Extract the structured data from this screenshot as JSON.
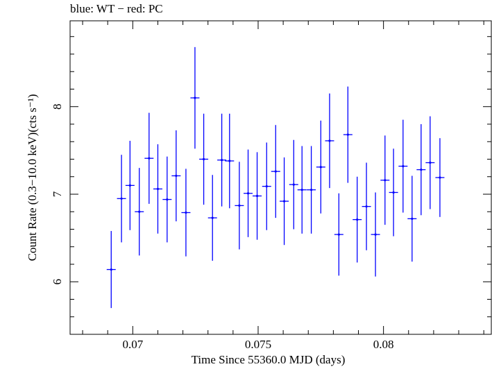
{
  "chart_data": {
    "type": "scatter",
    "title": "blue: WT − red: PC",
    "xlabel": "Time Since 55360.0 MJD (days)",
    "ylabel": "Count Rate (0.3−10.0 keV)(cts s⁻¹)",
    "xlim": [
      0.0675,
      0.0843
    ],
    "ylim": [
      5.4,
      8.98
    ],
    "x_ticks": [
      "0.07",
      "0.075",
      "0.08"
    ],
    "y_ticks": [
      "6",
      "7",
      "8"
    ],
    "series": [
      {
        "color": "#0000ff",
        "x_half_width": 0.00018,
        "points": [
          {
            "x": 0.06914,
            "y": 6.14,
            "err": 0.44
          },
          {
            "x": 0.06955,
            "y": 6.95,
            "err": 0.5
          },
          {
            "x": 0.06989,
            "y": 7.1,
            "err": 0.51
          },
          {
            "x": 0.07026,
            "y": 6.8,
            "err": 0.5
          },
          {
            "x": 0.07065,
            "y": 7.41,
            "err": 0.52
          },
          {
            "x": 0.071,
            "y": 7.06,
            "err": 0.51
          },
          {
            "x": 0.07137,
            "y": 6.94,
            "err": 0.49
          },
          {
            "x": 0.07173,
            "y": 7.21,
            "err": 0.52
          },
          {
            "x": 0.07212,
            "y": 6.79,
            "err": 0.5
          },
          {
            "x": 0.07248,
            "y": 8.1,
            "err": 0.58
          },
          {
            "x": 0.07283,
            "y": 7.4,
            "err": 0.52
          },
          {
            "x": 0.07318,
            "y": 6.73,
            "err": 0.49
          },
          {
            "x": 0.07355,
            "y": 7.39,
            "err": 0.53
          },
          {
            "x": 0.07386,
            "y": 7.38,
            "err": 0.54
          },
          {
            "x": 0.07425,
            "y": 6.87,
            "err": 0.5
          },
          {
            "x": 0.0746,
            "y": 7.01,
            "err": 0.5
          },
          {
            "x": 0.07496,
            "y": 6.98,
            "err": 0.5
          },
          {
            "x": 0.07534,
            "y": 7.09,
            "err": 0.5
          },
          {
            "x": 0.0757,
            "y": 7.26,
            "err": 0.53
          },
          {
            "x": 0.07604,
            "y": 6.92,
            "err": 0.5
          },
          {
            "x": 0.07642,
            "y": 7.11,
            "err": 0.51
          },
          {
            "x": 0.07675,
            "y": 7.05,
            "err": 0.5
          },
          {
            "x": 0.07712,
            "y": 7.05,
            "err": 0.5
          },
          {
            "x": 0.0775,
            "y": 7.31,
            "err": 0.53
          },
          {
            "x": 0.07785,
            "y": 7.61,
            "err": 0.54
          },
          {
            "x": 0.07822,
            "y": 6.54,
            "err": 0.47
          },
          {
            "x": 0.07858,
            "y": 7.68,
            "err": 0.55
          },
          {
            "x": 0.07895,
            "y": 6.71,
            "err": 0.49
          },
          {
            "x": 0.07932,
            "y": 6.86,
            "err": 0.5
          },
          {
            "x": 0.07968,
            "y": 6.54,
            "err": 0.48
          },
          {
            "x": 0.08006,
            "y": 7.16,
            "err": 0.51
          },
          {
            "x": 0.0804,
            "y": 7.02,
            "err": 0.5
          },
          {
            "x": 0.08078,
            "y": 7.32,
            "err": 0.53
          },
          {
            "x": 0.08114,
            "y": 6.72,
            "err": 0.49
          },
          {
            "x": 0.0815,
            "y": 7.28,
            "err": 0.52
          },
          {
            "x": 0.08186,
            "y": 7.36,
            "err": 0.53
          },
          {
            "x": 0.08225,
            "y": 7.19,
            "err": 0.45
          }
        ]
      }
    ],
    "grid": false,
    "legend": "none"
  }
}
